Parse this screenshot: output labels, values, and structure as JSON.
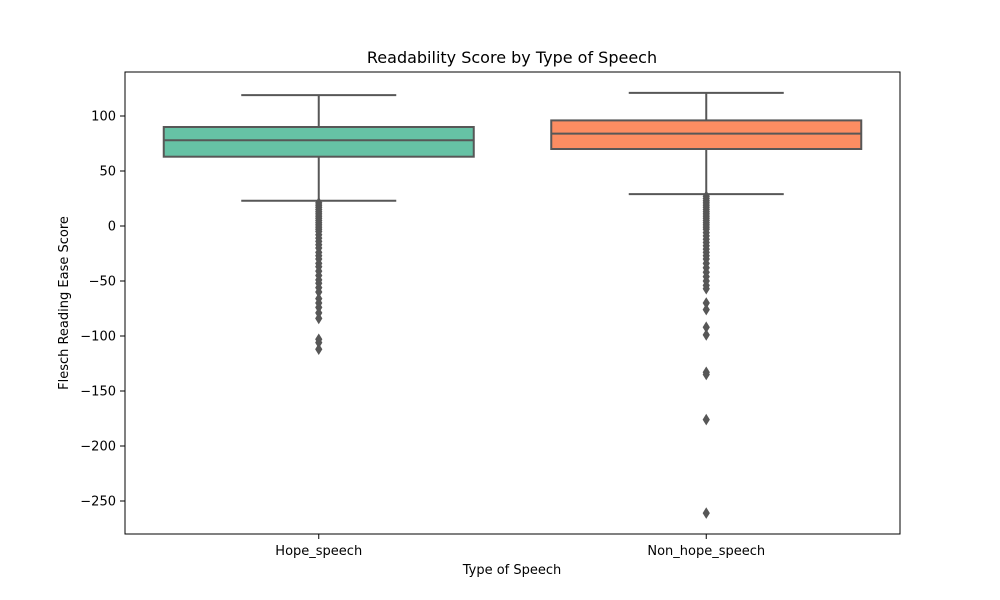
{
  "chart_data": {
    "type": "box",
    "title": "Readability Score by Type of Speech",
    "xlabel": "Type of Speech",
    "ylabel": "Flesch Reading Ease Score",
    "ylim": [
      -280,
      140
    ],
    "yticks": [
      100,
      50,
      0,
      -50,
      -100,
      -150,
      -200,
      -250
    ],
    "ytick_labels": [
      "100",
      "50",
      "0",
      "−50",
      "−100",
      "−150",
      "−200",
      "−250"
    ],
    "grid": false,
    "categories": [
      "Hope_speech",
      "Non_hope_speech"
    ],
    "boxes": [
      {
        "category": "Hope_speech",
        "color": "#66c2a5",
        "whisker_low": 23,
        "q1": 63,
        "median": 78,
        "q3": 90,
        "whisker_high": 119,
        "outliers": [
          21,
          19,
          17,
          15,
          13,
          11,
          9,
          7,
          5,
          3,
          1,
          -1,
          -3,
          -5,
          -8,
          -11,
          -14,
          -17,
          -20,
          -24,
          -27,
          -30,
          -34,
          -37,
          -41,
          -45,
          -49,
          -52,
          -56,
          -60,
          -66,
          -70,
          -74,
          -79,
          -84,
          -103,
          -106,
          -112
        ]
      },
      {
        "category": "Non_hope_speech",
        "color": "#fc8d62",
        "whisker_low": 29,
        "q1": 70,
        "median": 84,
        "q3": 96,
        "whisker_high": 121,
        "outliers": [
          27,
          25,
          23,
          21,
          19,
          17,
          15,
          13,
          11,
          9,
          7,
          5,
          3,
          1,
          -1,
          -3,
          -6,
          -9,
          -12,
          -15,
          -18,
          -21,
          -24,
          -27,
          -30,
          -34,
          -38,
          -42,
          -46,
          -50,
          -54,
          -57,
          -70,
          -76,
          -92,
          -99,
          -133,
          -135,
          -176,
          -261
        ]
      }
    ]
  }
}
